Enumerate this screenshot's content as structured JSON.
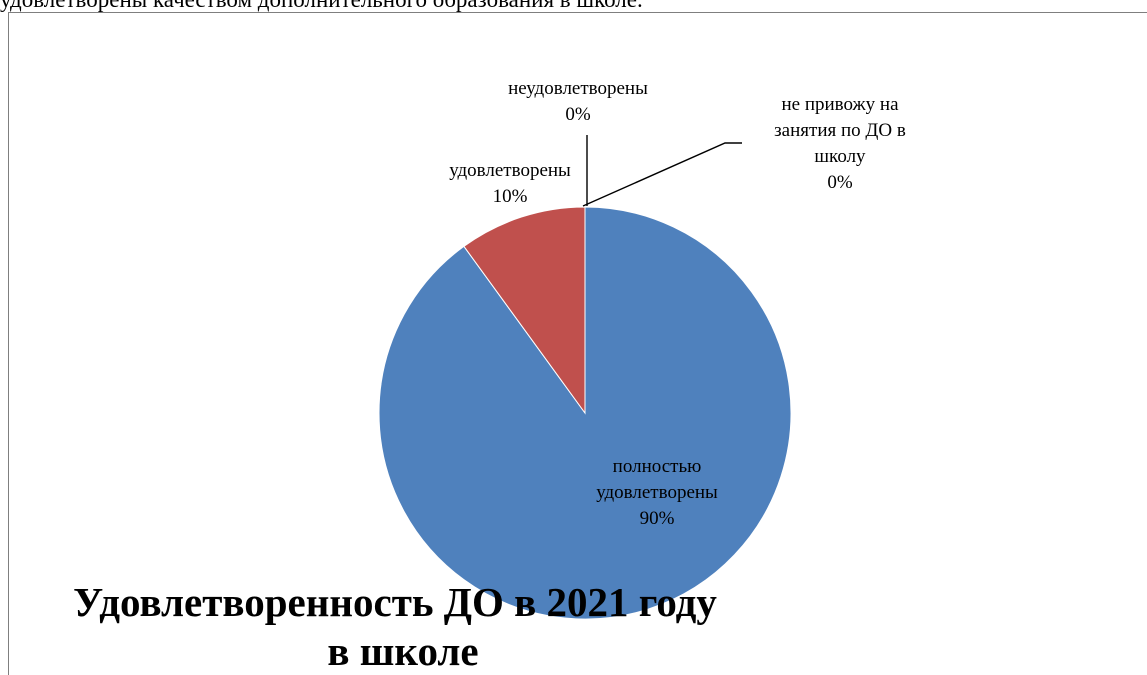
{
  "context_text": "удовлетворены качеством дополнительного образования в школе.",
  "chart_data": {
    "type": "pie",
    "title_lines": [
      "Удовлетворенность ДО в 2021 году",
      "в школе"
    ],
    "slices": [
      {
        "label_lines": [
          "полностью",
          "удовлетворены"
        ],
        "value": 90,
        "percent_label": "90%",
        "color": "#4f81bd"
      },
      {
        "label_lines": [
          "удовлетворены"
        ],
        "value": 10,
        "percent_label": "10%",
        "color": "#c0504d"
      },
      {
        "label_lines": [
          "неудовлетворены"
        ],
        "value": 0,
        "percent_label": "0%",
        "color": "#9bbb59"
      },
      {
        "label_lines": [
          "не привожу на",
          "занятия по ДО в",
          "школу"
        ],
        "value": 0,
        "percent_label": "0%",
        "color": "#8064a2"
      }
    ]
  }
}
